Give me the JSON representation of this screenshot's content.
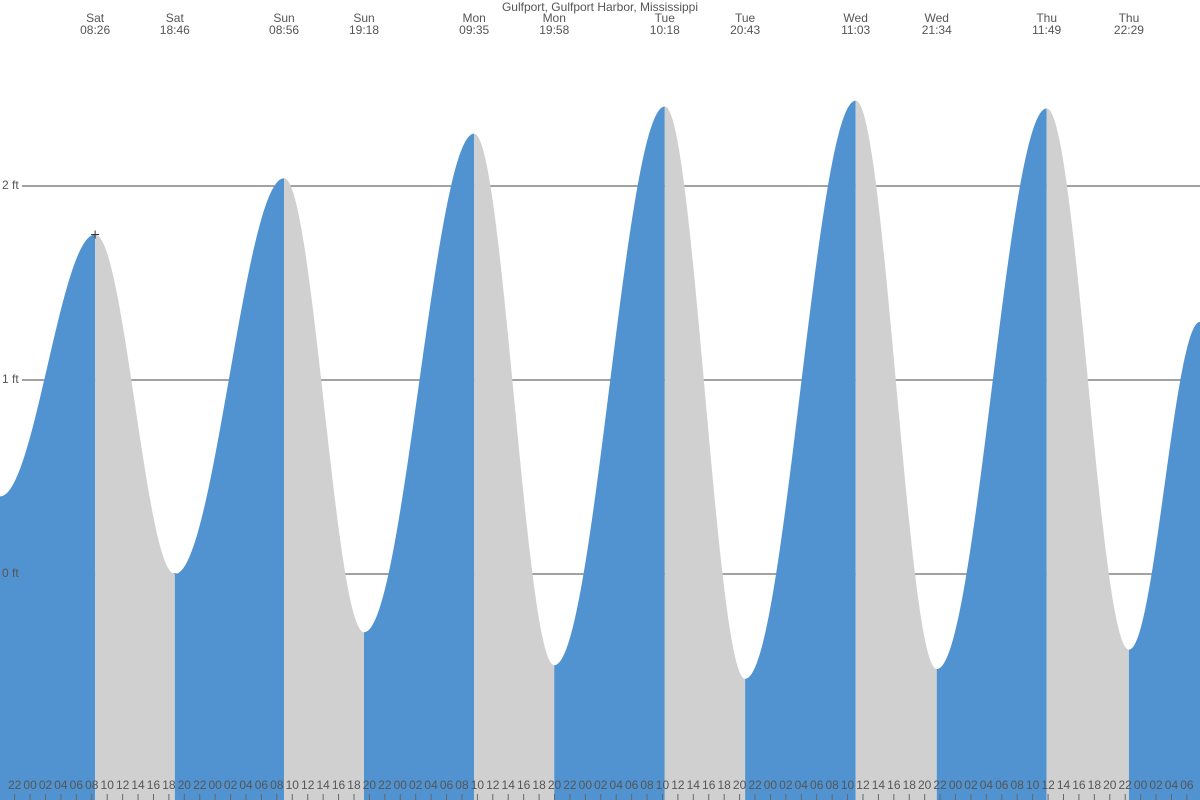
{
  "chart_data": {
    "type": "tide",
    "title": "Gulfport, Gulfport Harbor, Mississippi",
    "extremes": [
      {
        "day": "Sat",
        "time": "08:26",
        "height": 1.75
      },
      {
        "day": "Sat",
        "time": "18:46",
        "height": 0.0
      },
      {
        "day": "Sun",
        "time": "08:56",
        "height": 2.04
      },
      {
        "day": "Sun",
        "time": "19:18",
        "height": -0.3
      },
      {
        "day": "Mon",
        "time": "09:35",
        "height": 2.27
      },
      {
        "day": "Mon",
        "time": "19:58",
        "height": -0.47
      },
      {
        "day": "Tue",
        "time": "10:18",
        "height": 2.41
      },
      {
        "day": "Tue",
        "time": "20:43",
        "height": -0.54
      },
      {
        "day": "Wed",
        "time": "11:03",
        "height": 2.44
      },
      {
        "day": "Wed",
        "time": "21:34",
        "height": -0.49
      },
      {
        "day": "Thu",
        "time": "11:49",
        "height": 2.4
      },
      {
        "day": "Thu",
        "time": "22:29",
        "height": -0.39
      }
    ],
    "start": {
      "height": 0.4
    },
    "end": {
      "height": 1.3
    },
    "rising_color": "#5093d0",
    "falling_color": "#d0d0d0",
    "xlim": [
      -3.9,
      151.7
    ],
    "ylim": [
      -1.165,
      2.959
    ],
    "yticks": [
      {
        "value": 0,
        "label": "0 ft"
      },
      {
        "value": 1,
        "label": "1 ft"
      },
      {
        "value": 2,
        "label": "2 ft"
      }
    ],
    "grid": true,
    "xticks": [
      {
        "value": -2,
        "label": "22"
      },
      {
        "value": 0,
        "label": "00"
      },
      {
        "value": 2,
        "label": "02"
      },
      {
        "value": 4,
        "label": "04"
      },
      {
        "value": 6,
        "label": "06"
      },
      {
        "value": 8,
        "label": "08"
      },
      {
        "value": 10,
        "label": "10"
      },
      {
        "value": 12,
        "label": "12"
      },
      {
        "value": 14,
        "label": "14"
      },
      {
        "value": 16,
        "label": "16"
      },
      {
        "value": 18,
        "label": "18"
      },
      {
        "value": 20,
        "label": "20"
      },
      {
        "value": 22,
        "label": "22"
      },
      {
        "value": 24,
        "label": "00"
      },
      {
        "value": 26,
        "label": "02"
      },
      {
        "value": 28,
        "label": "04"
      },
      {
        "value": 30,
        "label": "06"
      },
      {
        "value": 32,
        "label": "08"
      },
      {
        "value": 34,
        "label": "10"
      },
      {
        "value": 36,
        "label": "12"
      },
      {
        "value": 38,
        "label": "14"
      },
      {
        "value": 40,
        "label": "16"
      },
      {
        "value": 42,
        "label": "18"
      },
      {
        "value": 44,
        "label": "20"
      },
      {
        "value": 46,
        "label": "22"
      },
      {
        "value": 48,
        "label": "00"
      },
      {
        "value": 50,
        "label": "02"
      },
      {
        "value": 52,
        "label": "04"
      },
      {
        "value": 54,
        "label": "06"
      },
      {
        "value": 56,
        "label": "08"
      },
      {
        "value": 58,
        "label": "10"
      },
      {
        "value": 60,
        "label": "12"
      },
      {
        "value": 62,
        "label": "14"
      },
      {
        "value": 64,
        "label": "16"
      },
      {
        "value": 66,
        "label": "18"
      },
      {
        "value": 68,
        "label": "20"
      },
      {
        "value": 70,
        "label": "22"
      },
      {
        "value": 72,
        "label": "00"
      },
      {
        "value": 74,
        "label": "02"
      },
      {
        "value": 76,
        "label": "04"
      },
      {
        "value": 78,
        "label": "06"
      },
      {
        "value": 80,
        "label": "08"
      },
      {
        "value": 82,
        "label": "10"
      },
      {
        "value": 84,
        "label": "12"
      },
      {
        "value": 86,
        "label": "14"
      },
      {
        "value": 88,
        "label": "16"
      },
      {
        "value": 90,
        "label": "18"
      },
      {
        "value": 92,
        "label": "20"
      },
      {
        "value": 94,
        "label": "22"
      },
      {
        "value": 96,
        "label": "00"
      },
      {
        "value": 98,
        "label": "02"
      },
      {
        "value": 100,
        "label": "04"
      },
      {
        "value": 102,
        "label": "06"
      },
      {
        "value": 104,
        "label": "08"
      },
      {
        "value": 106,
        "label": "10"
      },
      {
        "value": 108,
        "label": "12"
      },
      {
        "value": 110,
        "label": "14"
      },
      {
        "value": 112,
        "label": "16"
      },
      {
        "value": 114,
        "label": "18"
      },
      {
        "value": 116,
        "label": "20"
      },
      {
        "value": 118,
        "label": "22"
      },
      {
        "value": 120,
        "label": "00"
      },
      {
        "value": 122,
        "label": "02"
      },
      {
        "value": 124,
        "label": "04"
      },
      {
        "value": 126,
        "label": "06"
      },
      {
        "value": 128,
        "label": "08"
      },
      {
        "value": 130,
        "label": "10"
      },
      {
        "value": 132,
        "label": "12"
      },
      {
        "value": 134,
        "label": "14"
      },
      {
        "value": 136,
        "label": "16"
      },
      {
        "value": 138,
        "label": "18"
      },
      {
        "value": 140,
        "label": "20"
      },
      {
        "value": 142,
        "label": "22"
      },
      {
        "value": 144,
        "label": "00"
      },
      {
        "value": 146,
        "label": "02"
      },
      {
        "value": 148,
        "label": "04"
      },
      {
        "value": 150,
        "label": "06"
      }
    ]
  }
}
